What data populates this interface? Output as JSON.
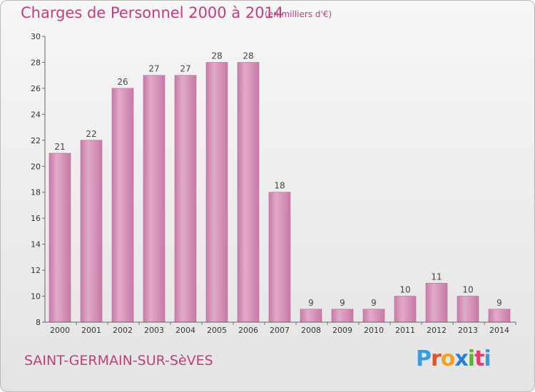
{
  "header": {
    "title": "Charges de Personnel 2000 à 2014",
    "subtitle": "(en milliers d'€)"
  },
  "footer": {
    "commune": "SAINT-GERMAIN-SUR-SèVES",
    "logo_text": "Proxiti",
    "logo_colors": [
      "#3a9be0",
      "#e8502c",
      "#f2a120",
      "#2b7fd8",
      "#59b531",
      "#e83c6e",
      "#3a9be0"
    ]
  },
  "colors": {
    "bar_fill": "#d48fb7",
    "bar_highlight": "#e6b2d2",
    "axis": "#555555",
    "accent": "#c03e7c"
  },
  "chart_data": {
    "type": "bar",
    "categories": [
      "2000",
      "2001",
      "2002",
      "2003",
      "2004",
      "2005",
      "2006",
      "2007",
      "2008",
      "2009",
      "2010",
      "2011",
      "2012",
      "2013",
      "2014"
    ],
    "values": [
      21,
      22,
      26,
      27,
      27,
      28,
      28,
      18,
      9,
      9,
      9,
      10,
      11,
      10,
      9
    ],
    "title": "Charges de Personnel 2000 à 2014",
    "ylim": [
      8,
      30
    ],
    "yticks": [
      8,
      10,
      12,
      14,
      16,
      18,
      20,
      22,
      24,
      26,
      28,
      30
    ],
    "grid": false
  }
}
